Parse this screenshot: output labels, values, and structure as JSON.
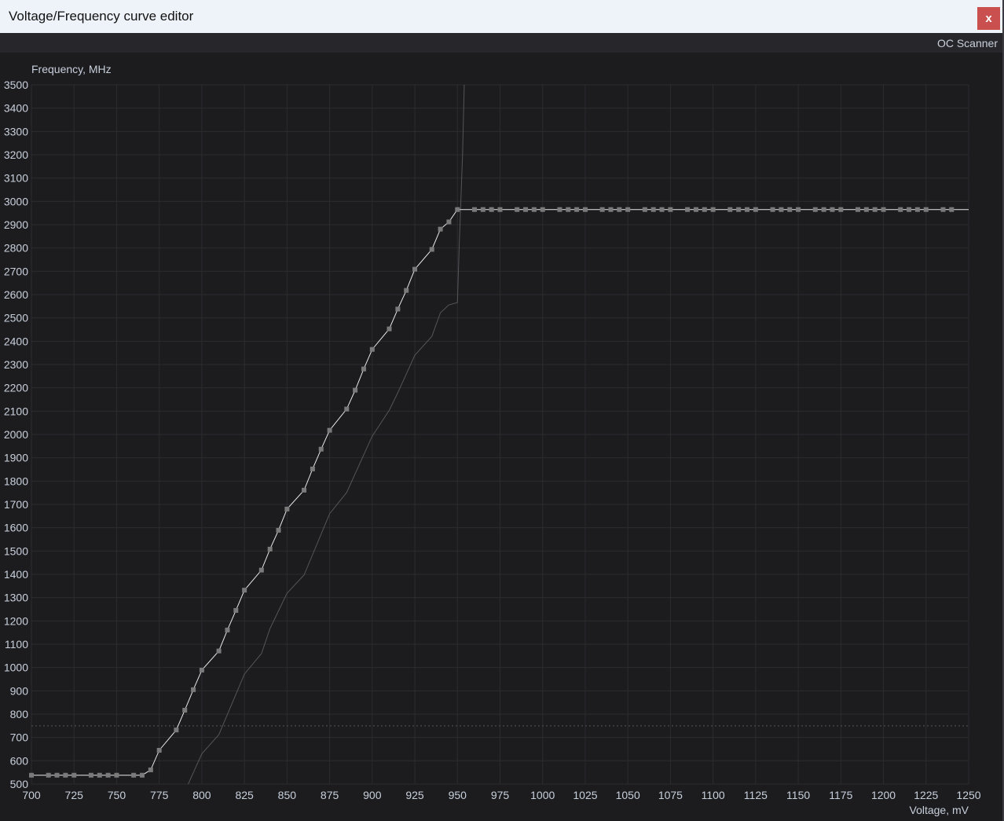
{
  "window": {
    "title": "Voltage/Frequency curve editor",
    "close_label": "x"
  },
  "toolbar": {
    "oc_scanner_label": "OC Scanner"
  },
  "colors": {
    "background": "#1c1c1f",
    "grid": "#2c2c30",
    "curve": "#e8e8e8",
    "point": "#7a7a7a",
    "reference_curve": "#55555a",
    "close_button": "#c9504f"
  },
  "chart_data": {
    "type": "line",
    "ylabel": "Frequency, MHz",
    "xlabel": "Voltage, mV",
    "xlim": [
      700,
      1250
    ],
    "ylim": [
      500,
      3500
    ],
    "grid": true,
    "x_ticks": [
      "700",
      "725",
      "750",
      "775",
      "800",
      "825",
      "850",
      "875",
      "900",
      "925",
      "950",
      "975",
      "1000",
      "1025",
      "1050",
      "1075",
      "1100",
      "1125",
      "1150",
      "1175",
      "1200",
      "1225",
      "1250"
    ],
    "y_ticks": [
      "500",
      "600",
      "700",
      "800",
      "900",
      "1000",
      "1100",
      "1200",
      "1300",
      "1400",
      "1500",
      "1600",
      "1700",
      "1800",
      "1900",
      "2000",
      "2100",
      "2200",
      "2300",
      "2400",
      "2500",
      "2600",
      "2700",
      "2800",
      "2900",
      "3000",
      "3100",
      "3200",
      "3300",
      "3400",
      "3500"
    ],
    "reference_line_mhz": 750,
    "series": [
      {
        "role": "curve",
        "points": [
          [
            700,
            538
          ],
          [
            710,
            538
          ],
          [
            715,
            538
          ],
          [
            720,
            538
          ],
          [
            725,
            538
          ],
          [
            735,
            538
          ],
          [
            740,
            538
          ],
          [
            745,
            538
          ],
          [
            750,
            538
          ],
          [
            760,
            538
          ],
          [
            765,
            538
          ],
          [
            770,
            561
          ],
          [
            775,
            645
          ],
          [
            785,
            732
          ],
          [
            790,
            817
          ],
          [
            795,
            905
          ],
          [
            800,
            989
          ],
          [
            810,
            1071
          ],
          [
            815,
            1161
          ],
          [
            820,
            1245
          ],
          [
            825,
            1332
          ],
          [
            835,
            1418
          ],
          [
            840,
            1508
          ],
          [
            845,
            1589
          ],
          [
            850,
            1680
          ],
          [
            860,
            1761
          ],
          [
            865,
            1852
          ],
          [
            870,
            1937
          ],
          [
            875,
            2018
          ],
          [
            885,
            2109
          ],
          [
            890,
            2190
          ],
          [
            895,
            2281
          ],
          [
            900,
            2365
          ],
          [
            910,
            2453
          ],
          [
            915,
            2538
          ],
          [
            920,
            2618
          ],
          [
            925,
            2709
          ],
          [
            935,
            2794
          ],
          [
            940,
            2881
          ],
          [
            945,
            2912
          ],
          [
            950,
            2965
          ],
          [
            960,
            2965
          ],
          [
            965,
            2965
          ],
          [
            970,
            2965
          ],
          [
            975,
            2965
          ],
          [
            985,
            2965
          ],
          [
            990,
            2965
          ],
          [
            995,
            2965
          ],
          [
            1000,
            2965
          ],
          [
            1010,
            2965
          ],
          [
            1015,
            2965
          ],
          [
            1020,
            2965
          ],
          [
            1025,
            2965
          ],
          [
            1035,
            2965
          ],
          [
            1040,
            2965
          ],
          [
            1045,
            2965
          ],
          [
            1050,
            2965
          ],
          [
            1060,
            2965
          ],
          [
            1065,
            2965
          ],
          [
            1070,
            2965
          ],
          [
            1075,
            2965
          ],
          [
            1085,
            2965
          ],
          [
            1090,
            2965
          ],
          [
            1095,
            2965
          ],
          [
            1100,
            2965
          ],
          [
            1110,
            2965
          ],
          [
            1115,
            2965
          ],
          [
            1120,
            2965
          ],
          [
            1125,
            2965
          ],
          [
            1135,
            2965
          ],
          [
            1140,
            2965
          ],
          [
            1145,
            2965
          ],
          [
            1150,
            2965
          ],
          [
            1160,
            2965
          ],
          [
            1165,
            2965
          ],
          [
            1170,
            2965
          ],
          [
            1175,
            2965
          ],
          [
            1185,
            2965
          ],
          [
            1190,
            2965
          ],
          [
            1195,
            2965
          ],
          [
            1200,
            2965
          ],
          [
            1210,
            2965
          ],
          [
            1215,
            2965
          ],
          [
            1220,
            2965
          ],
          [
            1225,
            2965
          ],
          [
            1235,
            2965
          ],
          [
            1240,
            2965
          ]
        ],
        "line_end": 1250
      },
      {
        "role": "reference",
        "points": [
          [
            792,
            500
          ],
          [
            800,
            630
          ],
          [
            810,
            712
          ],
          [
            825,
            972
          ],
          [
            835,
            1060
          ],
          [
            840,
            1167
          ],
          [
            850,
            1319
          ],
          [
            860,
            1397
          ],
          [
            870,
            1572
          ],
          [
            875,
            1660
          ],
          [
            885,
            1751
          ],
          [
            900,
            1993
          ],
          [
            910,
            2104
          ],
          [
            915,
            2179
          ],
          [
            925,
            2340
          ],
          [
            935,
            2421
          ],
          [
            940,
            2522
          ],
          [
            945,
            2556
          ],
          [
            950,
            2566
          ],
          [
            951,
            2800
          ],
          [
            953,
            3200
          ],
          [
            954,
            3500
          ]
        ]
      }
    ]
  }
}
